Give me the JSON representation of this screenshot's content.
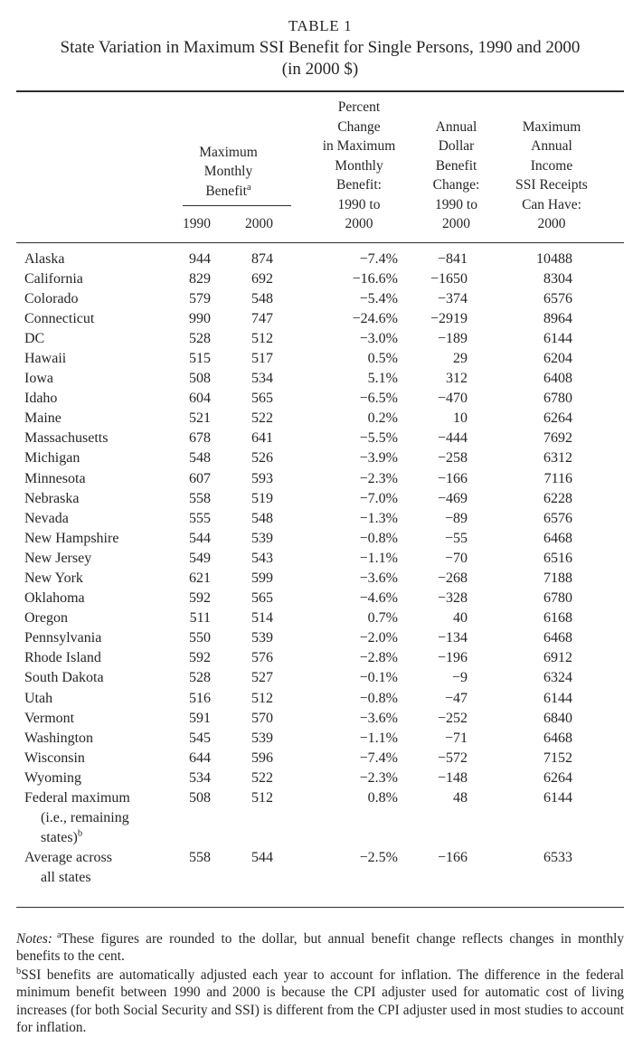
{
  "colors": {
    "ink": "#262626",
    "rule": "#2e2e2e",
    "background": "#ffffff"
  },
  "title": {
    "label": "TABLE 1",
    "subtitle": "State Variation in Maximum SSI Benefit for Single Persons, 1990 and 2000",
    "unit": "(in 2000 $)"
  },
  "header": {
    "state_col": "",
    "monthly_group": {
      "lines": [
        "Maximum",
        "Monthly",
        "Benefit"
      ],
      "sup": "a",
      "years": [
        "1990",
        "2000"
      ]
    },
    "percent_col": {
      "lines": [
        "Percent",
        "Change",
        "in Maximum",
        "Monthly",
        "Benefit:",
        "1990 to",
        "2000"
      ]
    },
    "dollar_col": {
      "lines": [
        "Annual",
        "Dollar",
        "Benefit",
        "Change:",
        "1990 to",
        "2000"
      ]
    },
    "income_col": {
      "lines": [
        "Maximum",
        "Annual",
        "Income",
        "SSI Receipts",
        "Can Have:",
        "2000"
      ]
    }
  },
  "rows": [
    {
      "state": "Alaska",
      "b1990": "944",
      "b2000": "874",
      "pct": "−7.4%",
      "change": "−841",
      "income": "10488"
    },
    {
      "state": "California",
      "b1990": "829",
      "b2000": "692",
      "pct": "−16.6%",
      "change": "−1650",
      "income": "8304"
    },
    {
      "state": "Colorado",
      "b1990": "579",
      "b2000": "548",
      "pct": "−5.4%",
      "change": "−374",
      "income": "6576"
    },
    {
      "state": "Connecticut",
      "b1990": "990",
      "b2000": "747",
      "pct": "−24.6%",
      "change": "−2919",
      "income": "8964"
    },
    {
      "state": "DC",
      "b1990": "528",
      "b2000": "512",
      "pct": "−3.0%",
      "change": "−189",
      "income": "6144"
    },
    {
      "state": "Hawaii",
      "b1990": "515",
      "b2000": "517",
      "pct": "0.5%",
      "change": "29",
      "income": "6204"
    },
    {
      "state": "Iowa",
      "b1990": "508",
      "b2000": "534",
      "pct": "5.1%",
      "change": "312",
      "income": "6408"
    },
    {
      "state": "Idaho",
      "b1990": "604",
      "b2000": "565",
      "pct": "−6.5%",
      "change": "−470",
      "income": "6780"
    },
    {
      "state": "Maine",
      "b1990": "521",
      "b2000": "522",
      "pct": "0.2%",
      "change": "10",
      "income": "6264"
    },
    {
      "state": "Massachusetts",
      "b1990": "678",
      "b2000": "641",
      "pct": "−5.5%",
      "change": "−444",
      "income": "7692"
    },
    {
      "state": "Michigan",
      "b1990": "548",
      "b2000": "526",
      "pct": "−3.9%",
      "change": "−258",
      "income": "6312"
    },
    {
      "state": "Minnesota",
      "b1990": "607",
      "b2000": "593",
      "pct": "−2.3%",
      "change": "−166",
      "income": "7116"
    },
    {
      "state": "Nebraska",
      "b1990": "558",
      "b2000": "519",
      "pct": "−7.0%",
      "change": "−469",
      "income": "6228"
    },
    {
      "state": "Nevada",
      "b1990": "555",
      "b2000": "548",
      "pct": "−1.3%",
      "change": "−89",
      "income": "6576"
    },
    {
      "state": "New Hampshire",
      "b1990": "544",
      "b2000": "539",
      "pct": "−0.8%",
      "change": "−55",
      "income": "6468"
    },
    {
      "state": "New Jersey",
      "b1990": "549",
      "b2000": "543",
      "pct": "−1.1%",
      "change": "−70",
      "income": "6516"
    },
    {
      "state": "New York",
      "b1990": "621",
      "b2000": "599",
      "pct": "−3.6%",
      "change": "−268",
      "income": "7188"
    },
    {
      "state": "Oklahoma",
      "b1990": "592",
      "b2000": "565",
      "pct": "−4.6%",
      "change": "−328",
      "income": "6780"
    },
    {
      "state": "Oregon",
      "b1990": "511",
      "b2000": "514",
      "pct": "0.7%",
      "change": "40",
      "income": "6168"
    },
    {
      "state": "Pennsylvania",
      "b1990": "550",
      "b2000": "539",
      "pct": "−2.0%",
      "change": "−134",
      "income": "6468"
    },
    {
      "state": "Rhode Island",
      "b1990": "592",
      "b2000": "576",
      "pct": "−2.8%",
      "change": "−196",
      "income": "6912"
    },
    {
      "state": "South Dakota",
      "b1990": "528",
      "b2000": "527",
      "pct": "−0.1%",
      "change": "−9",
      "income": "6324"
    },
    {
      "state": "Utah",
      "b1990": "516",
      "b2000": "512",
      "pct": "−0.8%",
      "change": "−47",
      "income": "6144"
    },
    {
      "state": "Vermont",
      "b1990": "591",
      "b2000": "570",
      "pct": "−3.6%",
      "change": "−252",
      "income": "6840"
    },
    {
      "state": "Washington",
      "b1990": "545",
      "b2000": "539",
      "pct": "−1.1%",
      "change": "−71",
      "income": "6468"
    },
    {
      "state": "Wisconsin",
      "b1990": "644",
      "b2000": "596",
      "pct": "−7.4%",
      "change": "−572",
      "income": "7152"
    },
    {
      "state": "Wyoming",
      "b1990": "534",
      "b2000": "522",
      "pct": "−2.3%",
      "change": "−148",
      "income": "6264"
    }
  ],
  "special_rows": [
    {
      "label_lines": [
        "Federal maximum",
        "(i.e., remaining",
        "states)"
      ],
      "sup": "b",
      "b1990": "508",
      "b2000": "512",
      "pct": "0.8%",
      "change": "48",
      "income": "6144"
    },
    {
      "label_lines": [
        "Average across",
        "all states"
      ],
      "sup": "",
      "b1990": "558",
      "b2000": "544",
      "pct": "−2.5%",
      "change": "−166",
      "income": "6533"
    }
  ],
  "notes": {
    "label": "Notes:",
    "note_a": {
      "sup": "a",
      "text": "These figures are rounded to the dollar, but annual benefit change reflects changes in monthly benefits to the cent."
    },
    "note_b": {
      "sup": "b",
      "text": "SSI benefits are automatically adjusted each year to account for inflation. The difference in the federal minimum benefit between 1990 and 2000 is because the CPI adjuster used for automatic cost of living increases (for both Social Security and SSI) is different from the CPI adjuster used in most studies to account for inflation."
    }
  }
}
